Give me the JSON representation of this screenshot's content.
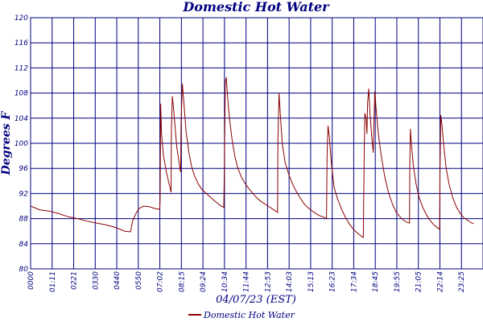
{
  "chart_data": {
    "type": "line",
    "title": "Domestic Hot Water",
    "xlabel": "04/07/23 (EST)",
    "ylabel": "Degrees F",
    "ylim": [
      80,
      120
    ],
    "xlim_hours": [
      0,
      24
    ],
    "y_ticks": [
      "80",
      "84",
      "88",
      "92",
      "96",
      "100",
      "104",
      "108",
      "112",
      "116",
      "120"
    ],
    "x_ticks": [
      "0000",
      "01:11",
      "0221",
      "0330",
      "0440",
      "0550",
      "07:02",
      "08:15",
      "09:24",
      "10:34",
      "11:44",
      "12:53",
      "14:03",
      "15:13",
      "16:23",
      "17:34",
      "18:45",
      "19:55",
      "21:05",
      "22:14",
      "23:25"
    ],
    "grid": true,
    "legend": "bottom-center",
    "line_color": "#8b0000",
    "grid_color": "#000080",
    "series": [
      {
        "name": "Domestic Hot Water",
        "points": [
          [
            0.0,
            90.0
          ],
          [
            0.5,
            89.4
          ],
          [
            1.0,
            89.2
          ],
          [
            1.5,
            88.8
          ],
          [
            2.0,
            88.3
          ],
          [
            2.5,
            88.0
          ],
          [
            3.0,
            87.6
          ],
          [
            3.5,
            87.3
          ],
          [
            4.0,
            87.0
          ],
          [
            4.5,
            86.6
          ],
          [
            5.0,
            86.0
          ],
          [
            5.3,
            85.9
          ],
          [
            5.33,
            86.3
          ],
          [
            5.4,
            87.5
          ],
          [
            5.55,
            88.6
          ],
          [
            5.75,
            89.6
          ],
          [
            6.0,
            90.0
          ],
          [
            6.3,
            89.9
          ],
          [
            6.6,
            89.6
          ],
          [
            6.85,
            89.5
          ],
          [
            6.87,
            91.0
          ],
          [
            6.9,
            106.3
          ],
          [
            6.95,
            101.5
          ],
          [
            7.05,
            98.0
          ],
          [
            7.2,
            95.5
          ],
          [
            7.35,
            93.5
          ],
          [
            7.45,
            92.2
          ],
          [
            7.47,
            102.0
          ],
          [
            7.52,
            107.5
          ],
          [
            7.6,
            105.0
          ],
          [
            7.75,
            99.5
          ],
          [
            7.9,
            96.5
          ],
          [
            7.96,
            95.4
          ],
          [
            7.98,
            103.0
          ],
          [
            8.05,
            109.5
          ],
          [
            8.12,
            107.0
          ],
          [
            8.25,
            101.8
          ],
          [
            8.4,
            98.5
          ],
          [
            8.55,
            96.2
          ],
          [
            8.7,
            94.8
          ],
          [
            8.9,
            93.5
          ],
          [
            9.1,
            92.6
          ],
          [
            9.4,
            91.8
          ],
          [
            9.7,
            91.0
          ],
          [
            9.9,
            90.5
          ],
          [
            10.1,
            90.0
          ],
          [
            10.25,
            89.8
          ],
          [
            10.28,
            96.0
          ],
          [
            10.33,
            109.8
          ],
          [
            10.38,
            110.5
          ],
          [
            10.45,
            107.5
          ],
          [
            10.55,
            104.0
          ],
          [
            10.7,
            100.3
          ],
          [
            10.85,
            97.7
          ],
          [
            11.0,
            96.0
          ],
          [
            11.2,
            94.5
          ],
          [
            11.4,
            93.5
          ],
          [
            11.6,
            92.7
          ],
          [
            11.8,
            92.0
          ],
          [
            12.0,
            91.3
          ],
          [
            12.2,
            90.8
          ],
          [
            12.4,
            90.4
          ],
          [
            12.6,
            90.0
          ],
          [
            12.8,
            89.6
          ],
          [
            13.0,
            89.2
          ],
          [
            13.1,
            89.0
          ],
          [
            13.12,
            100.0
          ],
          [
            13.18,
            108.0
          ],
          [
            13.25,
            104.5
          ],
          [
            13.35,
            100.0
          ],
          [
            13.5,
            97.0
          ],
          [
            13.7,
            95.0
          ],
          [
            13.9,
            93.5
          ],
          [
            14.1,
            92.3
          ],
          [
            14.3,
            91.3
          ],
          [
            14.5,
            90.4
          ],
          [
            14.7,
            89.8
          ],
          [
            14.9,
            89.3
          ],
          [
            15.1,
            88.9
          ],
          [
            15.3,
            88.5
          ],
          [
            15.5,
            88.3
          ],
          [
            15.7,
            88.0
          ],
          [
            15.73,
            98.0
          ],
          [
            15.78,
            102.8
          ],
          [
            15.85,
            101.0
          ],
          [
            15.95,
            97.0
          ],
          [
            16.1,
            93.0
          ],
          [
            16.3,
            91.0
          ],
          [
            16.5,
            89.5
          ],
          [
            16.7,
            88.2
          ],
          [
            16.9,
            87.2
          ],
          [
            17.1,
            86.4
          ],
          [
            17.3,
            85.8
          ],
          [
            17.5,
            85.3
          ],
          [
            17.65,
            85.0
          ],
          [
            17.7,
            99.0
          ],
          [
            17.73,
            104.8
          ],
          [
            17.8,
            104.0
          ],
          [
            17.84,
            101.5
          ],
          [
            17.88,
            106.5
          ],
          [
            17.94,
            108.7
          ],
          [
            18.0,
            105.0
          ],
          [
            18.1,
            101.0
          ],
          [
            18.18,
            98.5
          ],
          [
            18.22,
            104.0
          ],
          [
            18.26,
            108.3
          ],
          [
            18.33,
            105.5
          ],
          [
            18.45,
            101.5
          ],
          [
            18.6,
            98.0
          ],
          [
            18.8,
            94.5
          ],
          [
            19.0,
            92.0
          ],
          [
            19.2,
            90.3
          ],
          [
            19.4,
            89.0
          ],
          [
            19.6,
            88.3
          ],
          [
            19.8,
            87.7
          ],
          [
            20.0,
            87.4
          ],
          [
            20.1,
            87.3
          ],
          [
            20.12,
            97.0
          ],
          [
            20.15,
            102.3
          ],
          [
            20.2,
            100.0
          ],
          [
            20.3,
            96.5
          ],
          [
            20.45,
            93.5
          ],
          [
            20.6,
            91.5
          ],
          [
            20.8,
            89.8
          ],
          [
            21.0,
            88.6
          ],
          [
            21.2,
            87.7
          ],
          [
            21.4,
            87.0
          ],
          [
            21.6,
            86.5
          ],
          [
            21.7,
            86.3
          ],
          [
            21.72,
            96.0
          ],
          [
            21.76,
            104.5
          ],
          [
            21.82,
            103.0
          ],
          [
            21.92,
            99.5
          ],
          [
            22.05,
            96.0
          ],
          [
            22.2,
            93.5
          ],
          [
            22.4,
            91.3
          ],
          [
            22.6,
            89.8
          ],
          [
            22.8,
            88.8
          ],
          [
            23.0,
            88.1
          ],
          [
            23.2,
            87.7
          ],
          [
            23.4,
            87.3
          ],
          [
            23.5,
            87.2
          ]
        ]
      }
    ]
  }
}
